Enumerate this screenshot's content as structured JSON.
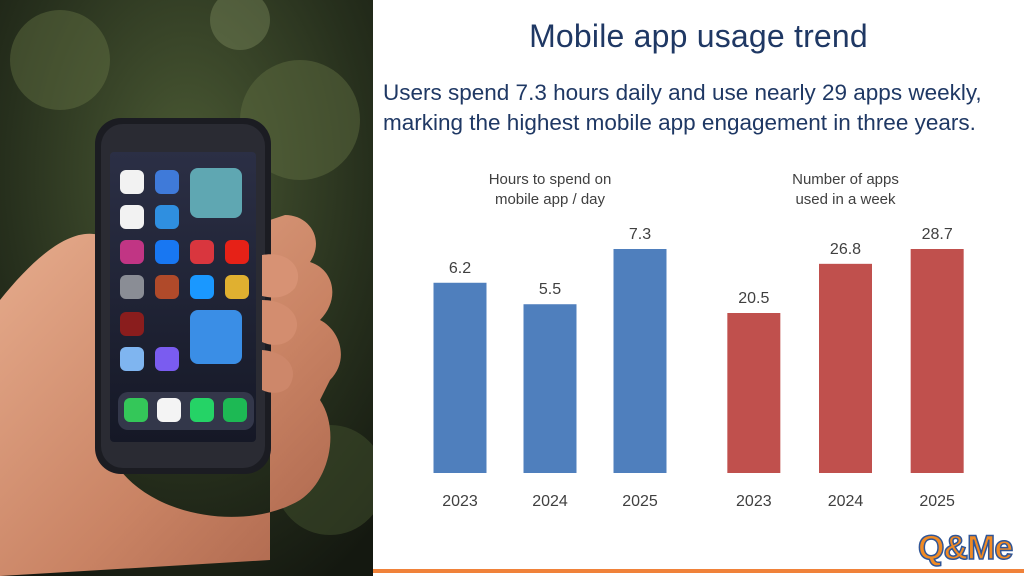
{
  "title": "Mobile app usage trend",
  "subtitle_line1": "Users spend 7.3 hours daily and use nearly 29 apps weekly,",
  "subtitle_line2": "marking the highest mobile app engagement in three years.",
  "logo_text": "Q&Me",
  "colors": {
    "title": "#1f3864",
    "hours_bars": "#4f7fbd",
    "apps_bars": "#c0504d",
    "accent_line": "#f0823a"
  },
  "photo": {
    "description_icon": "hand-holding-smartphone-photo"
  },
  "chart_data": [
    {
      "type": "bar",
      "title_line1": "Hours to spend on",
      "title_line2": "mobile app / day",
      "categories": [
        "2023",
        "2024",
        "2025"
      ],
      "values": [
        6.2,
        5.5,
        7.3
      ],
      "value_labels": [
        "6.2",
        "5.5",
        "7.3"
      ],
      "ylim": [
        0,
        7.3
      ],
      "color": "#4f7fbd",
      "grid": false
    },
    {
      "type": "bar",
      "title_line1": "Number of apps",
      "title_line2": "used in a week",
      "categories": [
        "2023",
        "2024",
        "2025"
      ],
      "values": [
        20.5,
        26.8,
        28.7
      ],
      "value_labels": [
        "20.5",
        "26.8",
        "28.7"
      ],
      "ylim": [
        0,
        28.7
      ],
      "color": "#c0504d",
      "grid": false
    }
  ]
}
